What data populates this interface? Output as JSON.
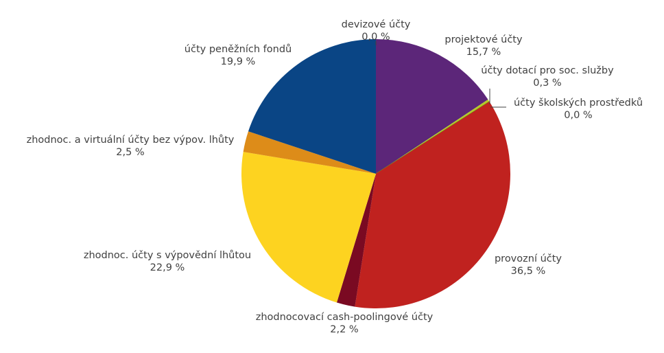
{
  "chart_data": {
    "type": "pie",
    "slices": [
      {
        "label": "devizové účty",
        "value_label": "0,0 %",
        "value": 0.0,
        "color": "#d4c400"
      },
      {
        "label": "projektové účty",
        "value_label": "15,7 %",
        "value": 15.7,
        "color": "#5c2679"
      },
      {
        "label": "účty dotací pro soc. služby",
        "value_label": "0,3 %",
        "value": 0.3,
        "color": "#b5c928"
      },
      {
        "label": "účty školských prostředků",
        "value_label": "0,0 %",
        "value": 0.0,
        "color": "#6b8c1d"
      },
      {
        "label": "provozní účty",
        "value_label": "36,5 %",
        "value": 36.5,
        "color": "#c0221f"
      },
      {
        "label": "zhodnocovací cash-poolingové účty",
        "value_label": "2,2 %",
        "value": 2.2,
        "color": "#7a0a22"
      },
      {
        "label": "zhodnoc.  účty s výpovědní lhůtou",
        "value_label": "22,9 %",
        "value": 22.9,
        "color": "#fdd320"
      },
      {
        "label": "zhodnoc. a virtuální účty bez výpov. lhůty",
        "value_label": "2,5 %",
        "value": 2.5,
        "color": "#dd8c19"
      },
      {
        "label": "účty peněžních fondů",
        "value_label": "19,9 %",
        "value": 19.9,
        "color": "#0a4585"
      }
    ]
  }
}
